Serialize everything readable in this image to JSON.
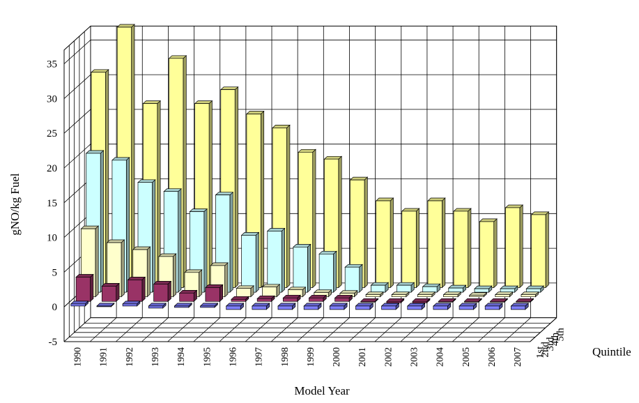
{
  "chart_data": {
    "type": "bar",
    "style": "3d-clustered-depth",
    "title": "",
    "ylabel": "gNO/kg Fuel",
    "xlabel": "Model Year",
    "zlabel": "Quintile",
    "ylim": [
      -5,
      35
    ],
    "yticks": [
      "35",
      "30",
      "25",
      "20",
      "15",
      "10",
      "5",
      "0",
      "-5"
    ],
    "categories": [
      "1990",
      "1991",
      "1992",
      "1993",
      "1994",
      "1995",
      "1996",
      "1997",
      "1998",
      "1999",
      "2000",
      "2001",
      "2002",
      "2003",
      "2004",
      "2005",
      "2006",
      "2007"
    ],
    "series": [
      {
        "name": "1st",
        "color": "#8080ff",
        "values": [
          0.3,
          -0.1,
          0.3,
          -0.3,
          -0.2,
          -0.2,
          -0.5,
          -0.5,
          -0.5,
          -0.5,
          -0.5,
          -0.5,
          -0.5,
          -0.5,
          -0.5,
          -0.5,
          -0.5,
          -0.5
        ]
      },
      {
        "name": "2nd",
        "color": "#993366",
        "values": [
          3.5,
          2.2,
          3.1,
          2.5,
          1.2,
          2.0,
          0.3,
          0.4,
          0.5,
          0.5,
          0.5,
          -0.1,
          -0.2,
          -0.2,
          -0.1,
          -0.1,
          -0.1,
          -0.1
        ]
      },
      {
        "name": "3rd",
        "color": "#ffffcc",
        "values": [
          9.8,
          7.8,
          6.8,
          5.8,
          3.5,
          4.5,
          1.2,
          1.4,
          1.0,
          0.6,
          0.5,
          0.3,
          0.3,
          0.3,
          0.3,
          0.2,
          0.3,
          0.3
        ]
      },
      {
        "name": "4th",
        "color": "#ccffff",
        "values": [
          20.0,
          19.0,
          15.8,
          14.5,
          11.6,
          14.0,
          8.2,
          8.8,
          6.5,
          5.5,
          3.6,
          1.0,
          1.0,
          0.8,
          0.6,
          0.5,
          0.5,
          0.5
        ]
      },
      {
        "name": "5th",
        "color": "#ffff99",
        "values": [
          31.0,
          37.5,
          26.5,
          33.0,
          26.5,
          28.5,
          25.0,
          23.0,
          19.5,
          18.5,
          15.5,
          12.5,
          11.0,
          12.5,
          11.0,
          9.5,
          11.5,
          10.5
        ]
      }
    ]
  }
}
